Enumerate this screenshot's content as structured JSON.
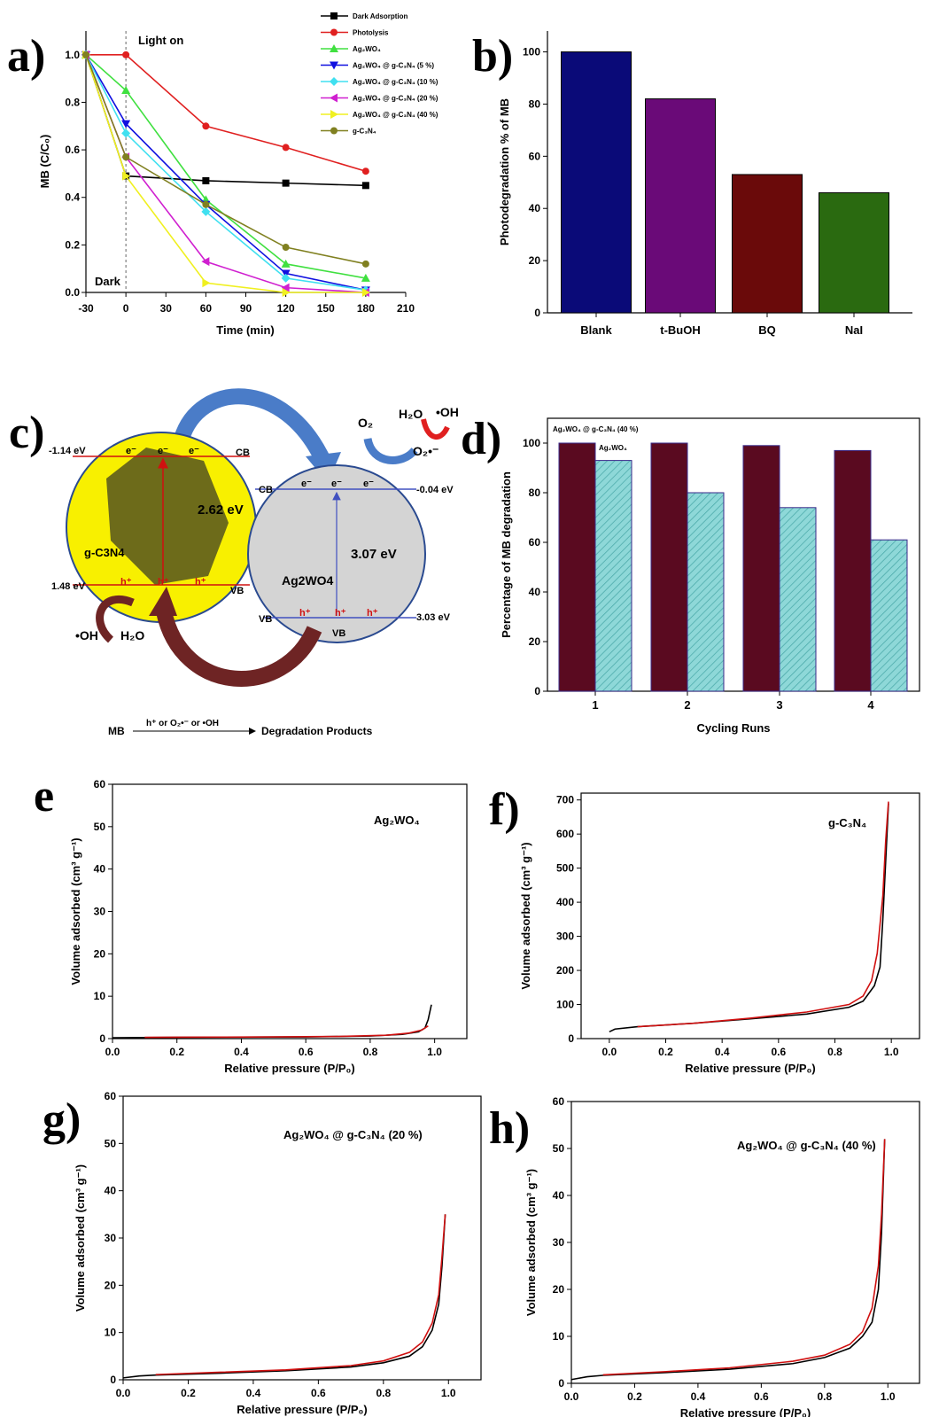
{
  "panels": {
    "a": {
      "label": "a)",
      "annot": {
        "light_on": "Light on",
        "dark": "Dark"
      }
    },
    "b": {
      "label": "b)"
    },
    "c": {
      "label": "c)"
    },
    "d": {
      "label": "d)"
    },
    "e": {
      "label": "e"
    },
    "f": {
      "label": "f)"
    },
    "g": {
      "label": "g)"
    },
    "h": {
      "label": "h)"
    }
  },
  "diagram": {
    "left_cb": "-1.14 eV",
    "left_vb": "1.48 eV",
    "right_cb": "-0.04 eV",
    "right_vb": "3.03 eV",
    "left_gap": "2.62 eV",
    "right_gap": "3.07 eV",
    "left_name": "g-C3N4",
    "right_name": "Ag2WO4",
    "cb": "CB",
    "vb": "VB",
    "electron": "e⁻",
    "hole": "h⁺",
    "o2": "O₂",
    "superoxide": "O₂•⁻",
    "h2o": "H₂O",
    "oh": "•OH",
    "scheme_mb": "MB",
    "scheme_arrow": "h⁺ or O₂•⁻ or •OH",
    "scheme_products": "Degradation Products",
    "colors": {
      "left_circle": "#f8f000",
      "right_circle": "#d4d4d4",
      "blue_arrow": "#4a7cc8",
      "maroon_arrow": "#6e2424"
    }
  },
  "chart_data": [
    {
      "id": "a",
      "type": "line",
      "xlabel": "Time (min)",
      "ylabel": "MB (C/C₀)",
      "xlim": [
        -30,
        210
      ],
      "ylim": [
        0,
        1.1
      ],
      "xticks": [
        -30,
        0,
        30,
        60,
        90,
        120,
        150,
        180,
        210
      ],
      "yticks": [
        0.0,
        0.2,
        0.4,
        0.6,
        0.8,
        1.0
      ],
      "legend_position": "top-right",
      "series": [
        {
          "name": "Dark Adsorption",
          "color": "#000000",
          "marker": "square",
          "x": [
            -30,
            0,
            60,
            120,
            180
          ],
          "y": [
            1.0,
            0.49,
            0.47,
            0.46,
            0.45
          ]
        },
        {
          "name": "Photolysis",
          "color": "#e02020",
          "marker": "circle",
          "x": [
            -30,
            0,
            60,
            120,
            180
          ],
          "y": [
            1.0,
            1.0,
            0.7,
            0.61,
            0.51
          ]
        },
        {
          "name": "Ag₂WO₄",
          "color": "#40e040",
          "marker": "triangle-up",
          "x": [
            -30,
            0,
            60,
            120,
            180
          ],
          "y": [
            1.0,
            0.85,
            0.39,
            0.12,
            0.06
          ]
        },
        {
          "name": "Ag₂WO₄ @ g-C₃N₄ (5 %)",
          "color": "#1010e0",
          "marker": "triangle-down",
          "x": [
            -30,
            0,
            60,
            120,
            180
          ],
          "y": [
            1.0,
            0.71,
            0.37,
            0.08,
            0.01
          ]
        },
        {
          "name": "Ag₂WO₄ @ g-C₃N₄ (10 %)",
          "color": "#40e0f0",
          "marker": "diamond",
          "x": [
            -30,
            0,
            60,
            120,
            180
          ],
          "y": [
            1.0,
            0.67,
            0.34,
            0.06,
            0.01
          ]
        },
        {
          "name": "Ag₂WO₄ @ g-C₃N₄ (20 %)",
          "color": "#d020d0",
          "marker": "triangle-left",
          "x": [
            -30,
            0,
            60,
            120,
            180
          ],
          "y": [
            1.0,
            0.57,
            0.13,
            0.02,
            0.0
          ]
        },
        {
          "name": "Ag₂WO₄ @ g-C₃N₄ (40 %)",
          "color": "#f0f020",
          "marker": "triangle-right",
          "x": [
            -30,
            0,
            60,
            120,
            180
          ],
          "y": [
            1.0,
            0.49,
            0.04,
            0.0,
            0.0
          ]
        },
        {
          "name": "g-C₃N₄",
          "color": "#808020",
          "marker": "circle",
          "x": [
            -30,
            0,
            60,
            120,
            180
          ],
          "y": [
            1.0,
            0.57,
            0.37,
            0.19,
            0.12
          ]
        }
      ]
    },
    {
      "id": "b",
      "type": "bar",
      "categories": [
        "Blank",
        "t-BuOH",
        "BQ",
        "NaI"
      ],
      "values": [
        100,
        82,
        53,
        46
      ],
      "colors": [
        "#0a0a78",
        "#6a0a78",
        "#6a0a0a",
        "#2a6a10"
      ],
      "ylabel": "Photodegradation % of MB",
      "ylim": [
        0,
        108
      ],
      "yticks": [
        0,
        20,
        40,
        60,
        80,
        100
      ]
    },
    {
      "id": "d",
      "type": "bar",
      "categories": [
        "1",
        "2",
        "3",
        "4"
      ],
      "xlabel": "Cycling Runs",
      "ylabel": "Percentage of MB degradation",
      "ylim": [
        0,
        110
      ],
      "yticks": [
        0,
        20,
        40,
        60,
        80,
        100
      ],
      "series": [
        {
          "name": "Ag₂WO₄ @ g-C₃N₄ (40 %)",
          "color": "#5a0a20",
          "values": [
            100,
            100,
            99,
            97
          ]
        },
        {
          "name": "Ag₂WO₄",
          "color": "#8ed8d8",
          "values": [
            93,
            80,
            74,
            61
          ]
        }
      ]
    },
    {
      "id": "e",
      "type": "line",
      "label": "Ag₂WO₄",
      "xlabel": "Relative pressure (P/P₀)",
      "ylabel": "Volume adsorbed (cm³ g⁻¹)",
      "xlim": [
        0,
        1.1
      ],
      "ylim": [
        0,
        60
      ],
      "xticks": [
        0.0,
        0.2,
        0.4,
        0.6,
        0.8,
        1.0
      ],
      "yticks": [
        0,
        10,
        20,
        30,
        40,
        50,
        60
      ],
      "series": [
        {
          "color": "#000000",
          "x": [
            0.0,
            0.2,
            0.4,
            0.6,
            0.8,
            0.9,
            0.95,
            0.97,
            0.98,
            0.99
          ],
          "y": [
            0.2,
            0.3,
            0.35,
            0.4,
            0.6,
            1.0,
            1.6,
            2.5,
            4.5,
            8
          ]
        },
        {
          "color": "#d01010",
          "x": [
            0.1,
            0.3,
            0.5,
            0.7,
            0.85,
            0.92,
            0.96,
            0.98
          ],
          "y": [
            0.3,
            0.35,
            0.4,
            0.5,
            0.8,
            1.3,
            2.0,
            3.0
          ]
        }
      ]
    },
    {
      "id": "f",
      "type": "line",
      "label": "g-C₃N₄",
      "xlabel": "Relative pressure (P/P₀)",
      "ylabel": "Volume adsorbed (cm³ g⁻¹)",
      "xlim": [
        -0.1,
        1.1
      ],
      "ylim": [
        0,
        720
      ],
      "xticks": [
        0.0,
        0.2,
        0.4,
        0.6,
        0.8,
        1.0
      ],
      "yticks": [
        0,
        100,
        200,
        300,
        400,
        500,
        600,
        700
      ],
      "series": [
        {
          "color": "#000000",
          "x": [
            0.0,
            0.02,
            0.1,
            0.3,
            0.5,
            0.7,
            0.85,
            0.9,
            0.94,
            0.96,
            0.97,
            0.98,
            0.99
          ],
          "y": [
            20,
            28,
            35,
            45,
            58,
            72,
            92,
            110,
            155,
            210,
            350,
            520,
            690
          ]
        },
        {
          "color": "#d01010",
          "x": [
            0.1,
            0.3,
            0.5,
            0.7,
            0.85,
            0.9,
            0.93,
            0.95,
            0.97,
            0.98,
            0.99
          ],
          "y": [
            35,
            45,
            60,
            78,
            100,
            125,
            170,
            250,
            420,
            580,
            695
          ]
        }
      ]
    },
    {
      "id": "g",
      "type": "line",
      "label": "Ag₂WO₄ @ g-C₃N₄ (20 %)",
      "xlabel": "Relative pressure (P/P₀)",
      "ylabel": "Volume adsorbed (cm³ g⁻¹)",
      "xlim": [
        0,
        1.1
      ],
      "ylim": [
        0,
        60
      ],
      "xticks": [
        0.0,
        0.2,
        0.4,
        0.6,
        0.8,
        1.0
      ],
      "yticks": [
        0,
        10,
        20,
        30,
        40,
        50,
        60
      ],
      "series": [
        {
          "color": "#000000",
          "x": [
            0.0,
            0.05,
            0.1,
            0.3,
            0.5,
            0.7,
            0.8,
            0.88,
            0.92,
            0.95,
            0.97,
            0.98,
            0.99
          ],
          "y": [
            0.4,
            0.8,
            1.0,
            1.4,
            1.9,
            2.7,
            3.6,
            5.0,
            7.0,
            10.5,
            16,
            24,
            35
          ]
        },
        {
          "color": "#d01010",
          "x": [
            0.1,
            0.3,
            0.5,
            0.7,
            0.8,
            0.88,
            0.92,
            0.95,
            0.97,
            0.98,
            0.99
          ],
          "y": [
            1.1,
            1.6,
            2.1,
            3.0,
            4.0,
            5.8,
            8.0,
            12,
            18,
            26,
            35
          ]
        }
      ]
    },
    {
      "id": "h",
      "type": "line",
      "label": "Ag₂WO₄ @ g-C₃N₄ (40 %)",
      "xlabel": "Relative pressure (P/P₀)",
      "ylabel": "Volume adsorbed (cm³ g⁻¹)",
      "xlim": [
        0,
        1.1
      ],
      "ylim": [
        0,
        60
      ],
      "xticks": [
        0.0,
        0.2,
        0.4,
        0.6,
        0.8,
        1.0
      ],
      "yticks": [
        0,
        10,
        20,
        30,
        40,
        50,
        60
      ],
      "series": [
        {
          "color": "#000000",
          "x": [
            0.0,
            0.05,
            0.1,
            0.3,
            0.5,
            0.7,
            0.8,
            0.88,
            0.92,
            0.95,
            0.97,
            0.98,
            0.99
          ],
          "y": [
            0.8,
            1.4,
            1.7,
            2.3,
            3.0,
            4.2,
            5.5,
            7.5,
            10.0,
            13,
            20,
            32,
            52
          ]
        },
        {
          "color": "#d01010",
          "x": [
            0.1,
            0.3,
            0.5,
            0.7,
            0.8,
            0.88,
            0.92,
            0.95,
            0.97,
            0.98,
            0.99
          ],
          "y": [
            1.8,
            2.5,
            3.3,
            4.7,
            6.0,
            8.3,
            11,
            16,
            25,
            36,
            52
          ]
        }
      ]
    }
  ]
}
